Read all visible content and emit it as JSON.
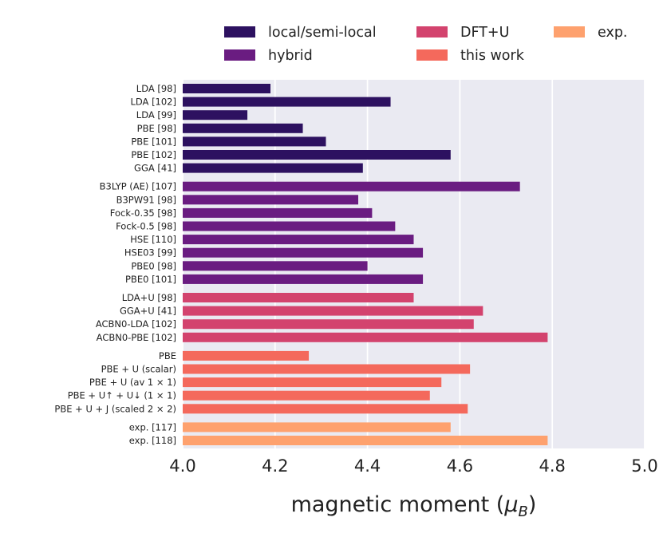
{
  "chart_data": {
    "type": "bar",
    "orientation": "horizontal",
    "title": "",
    "xlabel": "magnetic moment (μB)",
    "xlabel_main": "magnetic moment (",
    "xlabel_symbol": "μ",
    "xlabel_sub": "B",
    "xlabel_close": ")",
    "ylabel": "",
    "xlim": [
      4.0,
      5.0
    ],
    "xticks": [
      4.0,
      4.2,
      4.4,
      4.6,
      4.8,
      5.0
    ],
    "xtick_labels": [
      "4.0",
      "4.2",
      "4.4",
      "4.6",
      "4.8",
      "5.0"
    ],
    "grid": true,
    "legend_position": "top",
    "groups": [
      {
        "name": "local/semi-local",
        "color": "#2d1160",
        "bars": [
          {
            "label": "LDA [98]",
            "value": 4.19
          },
          {
            "label": "LDA [102]",
            "value": 4.45
          },
          {
            "label": "LDA [99]",
            "value": 4.14
          },
          {
            "label": "PBE [98]",
            "value": 4.26
          },
          {
            "label": "PBE [101]",
            "value": 4.31
          },
          {
            "label": "PBE [102]",
            "value": 4.58
          },
          {
            "label": "GGA [41]",
            "value": 4.39
          }
        ]
      },
      {
        "name": "hybrid",
        "color": "#6a1c81",
        "bars": [
          {
            "label": "B3LYP (AE) [107]",
            "value": 4.73
          },
          {
            "label": "B3PW91 [98]",
            "value": 4.38
          },
          {
            "label": "Fock-0.35 [98]",
            "value": 4.41
          },
          {
            "label": "Fock-0.5 [98]",
            "value": 4.46
          },
          {
            "label": "HSE [110]",
            "value": 4.5
          },
          {
            "label": "HSE03 [99]",
            "value": 4.52
          },
          {
            "label": "PBE0 [98]",
            "value": 4.4
          },
          {
            "label": "PBE0 [101]",
            "value": 4.52
          }
        ]
      },
      {
        "name": "DFT+U",
        "color": "#d3436e",
        "bars": [
          {
            "label": "LDA+U [98]",
            "value": 4.5
          },
          {
            "label": "GGA+U [41]",
            "value": 4.65
          },
          {
            "label": "ACBN0-LDA [102]",
            "value": 4.63
          },
          {
            "label": "ACBN0-PBE [102]",
            "value": 4.79
          }
        ]
      },
      {
        "name": "this work",
        "color": "#f4695c",
        "bars": [
          {
            "label": "PBE",
            "value": 4.273
          },
          {
            "label": "PBE + U (scalar)",
            "value": 4.622
          },
          {
            "label": "PBE + U (av 1 × 1)",
            "value": 4.56
          },
          {
            "label": "PBE + U↑ + U↓ (1 × 1)",
            "value": 4.535
          },
          {
            "label": "PBE + U + J (scaled 2 × 2)",
            "value": 4.617
          }
        ]
      },
      {
        "name": "exp.",
        "color": "#fea16e",
        "bars": [
          {
            "label": "exp. [117]",
            "value": 4.58
          },
          {
            "label": "exp. [118]",
            "value": 4.79
          }
        ]
      }
    ],
    "legend": [
      {
        "label": "local/semi-local",
        "color": "#2d1160"
      },
      {
        "label": "hybrid",
        "color": "#6a1c81"
      },
      {
        "label": "DFT+U",
        "color": "#d3436e"
      },
      {
        "label": "this work",
        "color": "#f4695c"
      },
      {
        "label": "exp.",
        "color": "#fea16e"
      }
    ],
    "background_color": "#eaeaf2",
    "grid_color": "#ffffff"
  }
}
